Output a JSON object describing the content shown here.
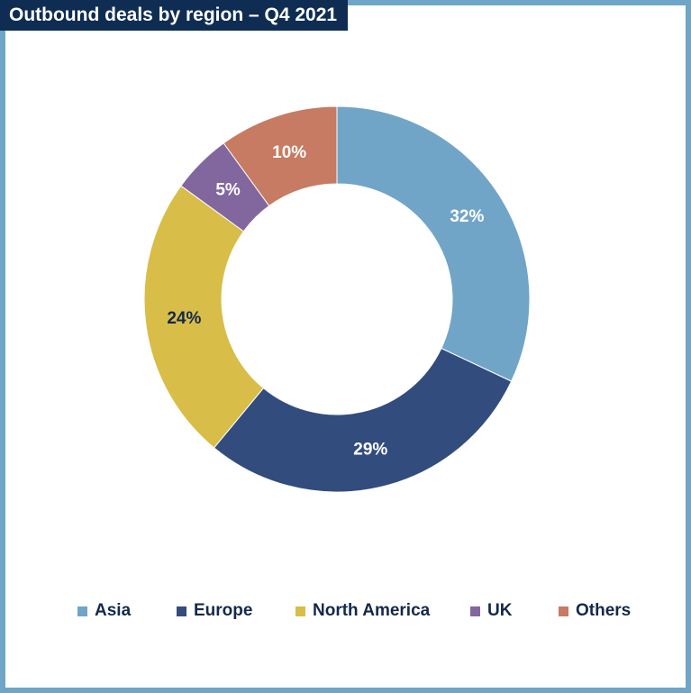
{
  "title": "Outbound deals by region – Q4 2021",
  "chart_data": {
    "type": "pie",
    "title": "Outbound deals by region – Q4 2021",
    "donut": true,
    "categories": [
      "Asia",
      "Europe",
      "North America",
      "UK",
      "Others"
    ],
    "values": [
      32,
      29,
      24,
      5,
      10
    ],
    "labels": [
      "32%",
      "29%",
      "24%",
      "5%",
      "10%"
    ],
    "colors": [
      "#70a5c8",
      "#324c7e",
      "#d8bd48",
      "#82669e",
      "#c67b62"
    ],
    "label_colors": [
      "#ffffff",
      "#ffffff",
      "#13294b",
      "#ffffff",
      "#ffffff"
    ],
    "legend_position": "bottom"
  },
  "legend": {
    "items": [
      {
        "label": "Asia",
        "color": "#70a5c8"
      },
      {
        "label": "Europe",
        "color": "#324c7e"
      },
      {
        "label": "North America",
        "color": "#d8bd48"
      },
      {
        "label": "UK",
        "color": "#82669e"
      },
      {
        "label": "Others",
        "color": "#c67b62"
      }
    ]
  }
}
